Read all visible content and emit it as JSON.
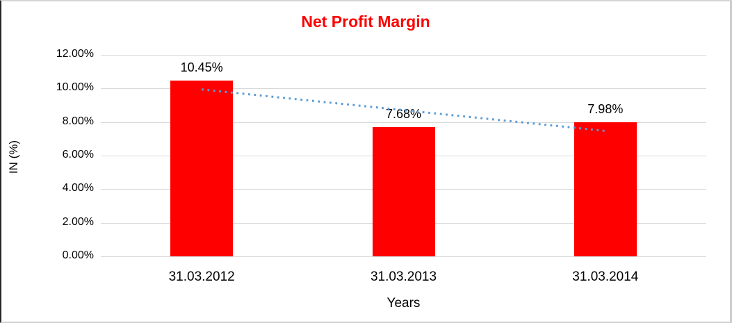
{
  "chart_data": {
    "type": "bar",
    "title": "Net Profit Margin",
    "xlabel": "Years",
    "ylabel": "IN (%)",
    "categories": [
      "31.03.2012",
      "31.03.2013",
      "31.03.2014"
    ],
    "series": [
      {
        "name": "Net Profit Margin",
        "values": [
          10.45,
          7.68,
          7.98
        ],
        "color": "#ff0000"
      }
    ],
    "data_labels": [
      "10.45%",
      "7.68%",
      "7.98%"
    ],
    "ylim": [
      0,
      12
    ],
    "yticks": [
      {
        "value": 0,
        "label": "0.00%"
      },
      {
        "value": 2,
        "label": "2.00%"
      },
      {
        "value": 4,
        "label": "4.00%"
      },
      {
        "value": 6,
        "label": "6.00%"
      },
      {
        "value": 8,
        "label": "8.00%"
      },
      {
        "value": 10,
        "label": "10.00%"
      },
      {
        "value": 12,
        "label": "12.00%"
      }
    ],
    "grid": true,
    "legend": "none",
    "trendline": {
      "type": "linear",
      "style": "dotted",
      "color": "#5b9bd5",
      "start_value": 9.94,
      "end_value": 7.47
    },
    "colors": {
      "title": "#ff0000",
      "bar": "#ff0000",
      "gridline": "#d9d9d9",
      "text": "#000000"
    }
  }
}
